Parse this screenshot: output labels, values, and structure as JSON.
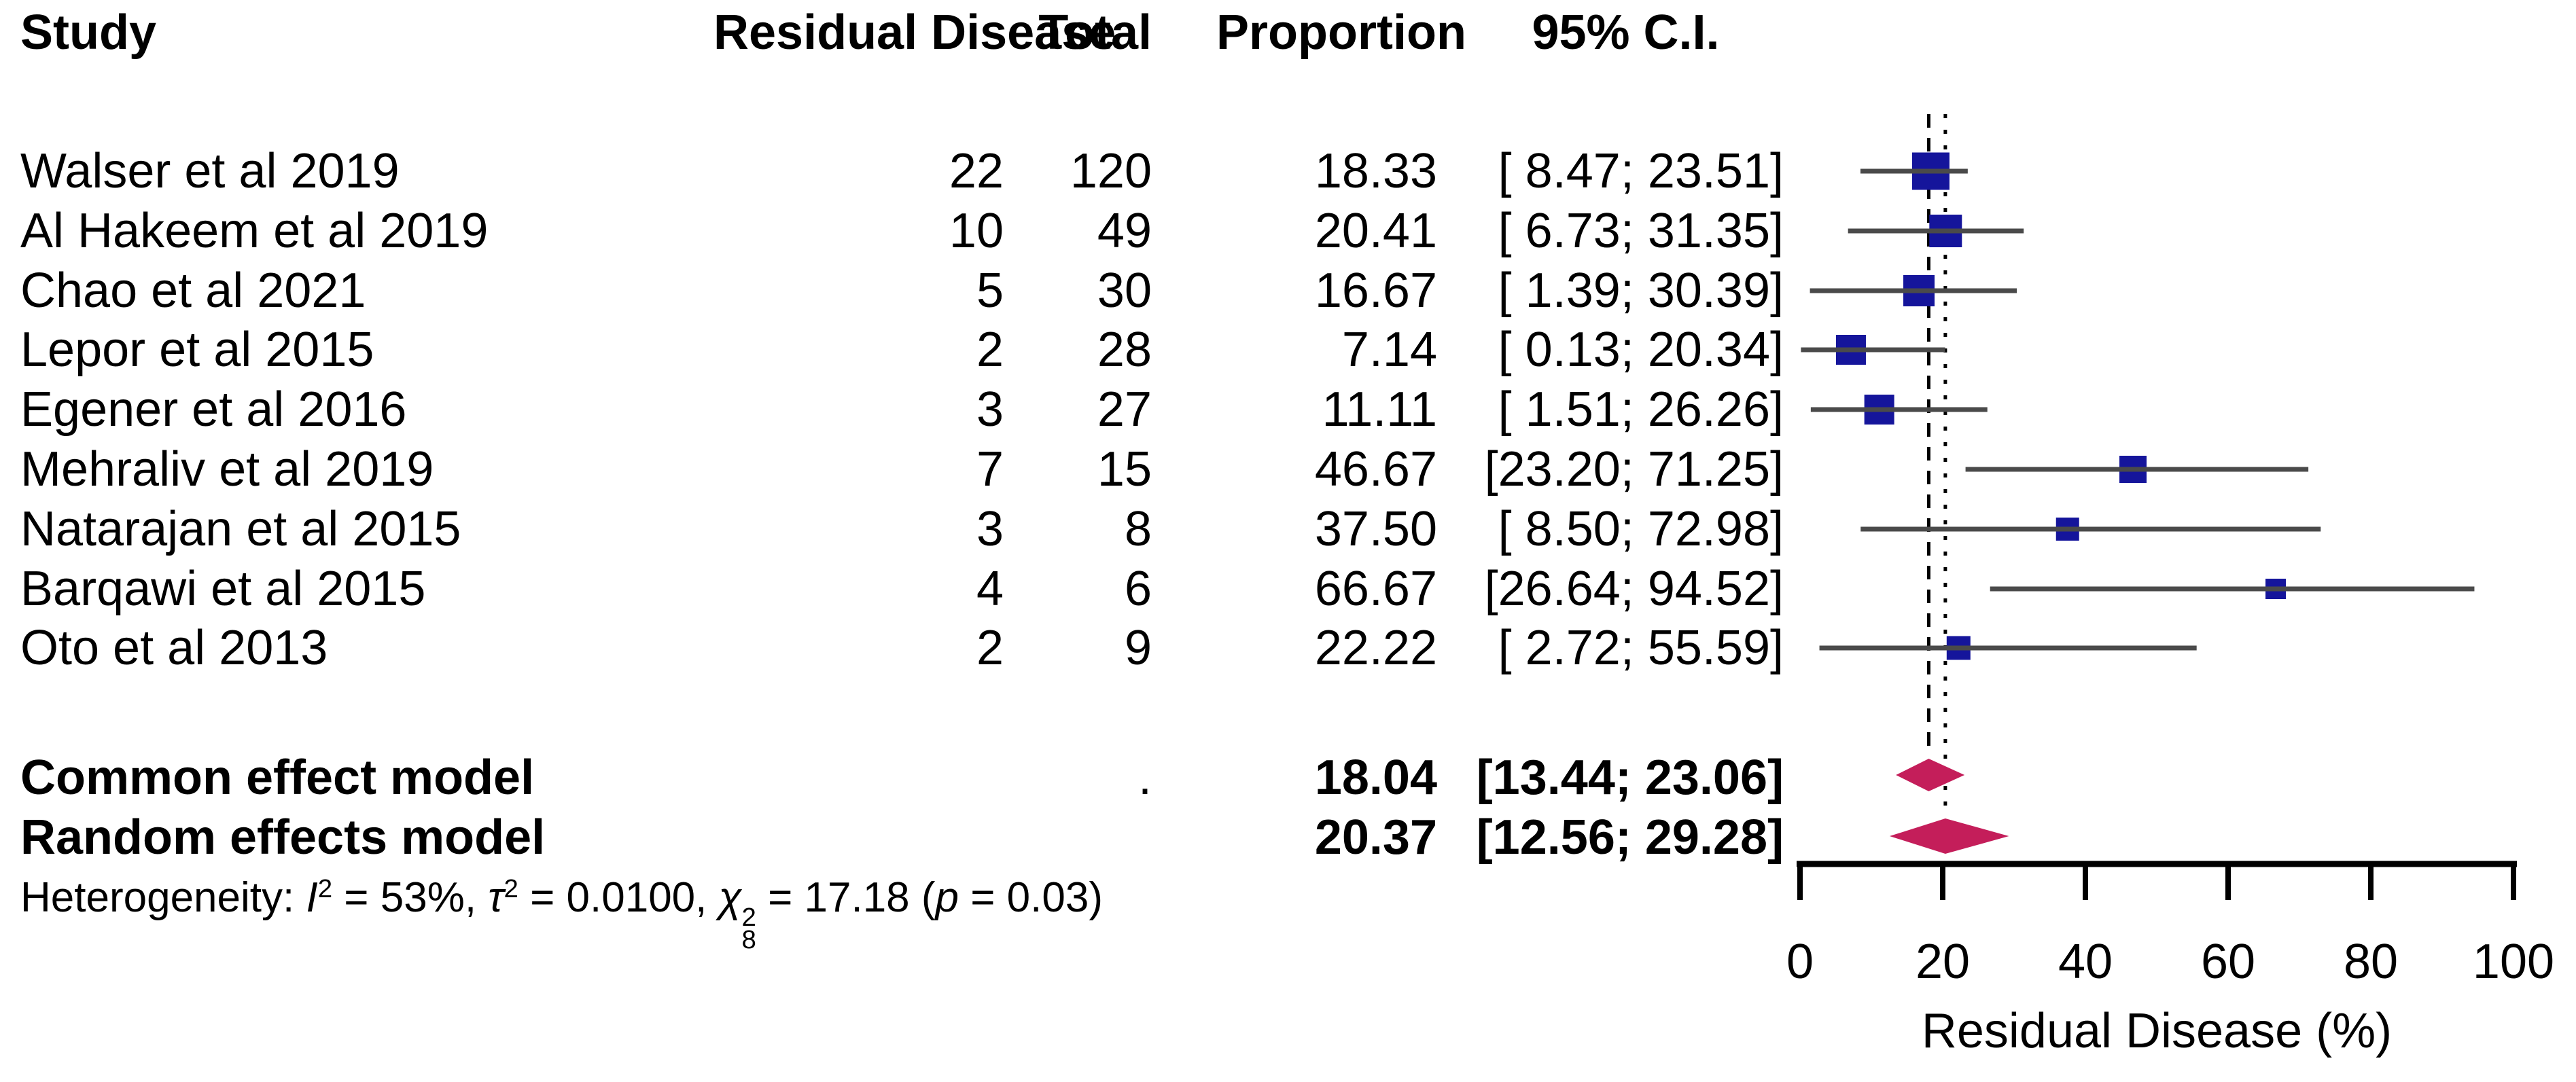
{
  "table": {
    "headers": {
      "study": "Study",
      "events": "Residual Disease",
      "total": "Total",
      "proportion": "Proportion",
      "ci": "95% C.I."
    },
    "rows": [
      {
        "study": "Walser et al 2019",
        "events": "22",
        "total": "120",
        "proportion": "18.33",
        "ci": "[ 8.47; 23.51]"
      },
      {
        "study": "Al Hakeem et al 2019",
        "events": "10",
        "total": "49",
        "proportion": "20.41",
        "ci": "[ 6.73; 31.35]"
      },
      {
        "study": "Chao et al 2021",
        "events": "5",
        "total": "30",
        "proportion": "16.67",
        "ci": "[ 1.39; 30.39]"
      },
      {
        "study": "Lepor et al 2015",
        "events": "2",
        "total": "28",
        "proportion": "7.14",
        "ci": "[ 0.13; 20.34]"
      },
      {
        "study": "Egener et al 2016",
        "events": "3",
        "total": "27",
        "proportion": "11.11",
        "ci": "[ 1.51; 26.26]"
      },
      {
        "study": "Mehraliv et al 2019",
        "events": "7",
        "total": "15",
        "proportion": "46.67",
        "ci": "[23.20; 71.25]"
      },
      {
        "study": "Natarajan et al 2015",
        "events": "3",
        "total": "8",
        "proportion": "37.50",
        "ci": "[ 8.50; 72.98]"
      },
      {
        "study": "Barqawi et al 2015",
        "events": "4",
        "total": "6",
        "proportion": "66.67",
        "ci": "[26.64; 94.52]"
      },
      {
        "study": "Oto et al 2013",
        "events": "2",
        "total": "9",
        "proportion": "22.22",
        "ci": "[ 2.72; 55.59]"
      }
    ],
    "summary_rows": [
      {
        "label": "Common effect model",
        "total": ".",
        "proportion": "18.04",
        "ci": "[13.44; 23.06]"
      },
      {
        "label": "Random effects model",
        "total": "",
        "proportion": "20.37",
        "ci": "[12.56; 29.28]"
      }
    ],
    "heterogeneity": {
      "label": "Heterogeneity: ",
      "i": "I",
      "i_exp": "2",
      "i_rest": " = 53%, ",
      "tau": "τ",
      "tau_exp": "2",
      "tau_rest": " = 0.0100, ",
      "chi": "χ",
      "chi_exp": "2",
      "chi_sub": "8",
      "chi_rest": " = 17.18 (",
      "p": "p",
      "p_rest": " = 0.03)"
    }
  },
  "chart_data": {
    "type": "forest",
    "title": "",
    "xlabel": "Residual Disease (%)",
    "xlim": [
      0,
      100
    ],
    "x_ticks": [
      0,
      20,
      40,
      60,
      80,
      100
    ],
    "grid": false,
    "studies": [
      {
        "name": "Walser et al 2019",
        "events": 22,
        "total": 120,
        "proportion": 18.33,
        "ci_low": 8.47,
        "ci_high": 23.51
      },
      {
        "name": "Al Hakeem et al 2019",
        "events": 10,
        "total": 49,
        "proportion": 20.41,
        "ci_low": 6.73,
        "ci_high": 31.35
      },
      {
        "name": "Chao et al 2021",
        "events": 5,
        "total": 30,
        "proportion": 16.67,
        "ci_low": 1.39,
        "ci_high": 30.39
      },
      {
        "name": "Lepor et al 2015",
        "events": 2,
        "total": 28,
        "proportion": 7.14,
        "ci_low": 0.13,
        "ci_high": 20.34
      },
      {
        "name": "Egener et al 2016",
        "events": 3,
        "total": 27,
        "proportion": 11.11,
        "ci_low": 1.51,
        "ci_high": 26.26
      },
      {
        "name": "Mehraliv et al 2019",
        "events": 7,
        "total": 15,
        "proportion": 46.67,
        "ci_low": 23.2,
        "ci_high": 71.25
      },
      {
        "name": "Natarajan et al 2015",
        "events": 3,
        "total": 8,
        "proportion": 37.5,
        "ci_low": 8.5,
        "ci_high": 72.98
      },
      {
        "name": "Barqawi et al 2015",
        "events": 4,
        "total": 6,
        "proportion": 66.67,
        "ci_low": 26.64,
        "ci_high": 94.52
      },
      {
        "name": "Oto et al 2013",
        "events": 2,
        "total": 9,
        "proportion": 22.22,
        "ci_low": 2.72,
        "ci_high": 55.59
      }
    ],
    "summaries": [
      {
        "name": "Common effect model",
        "proportion": 18.04,
        "ci_low": 13.44,
        "ci_high": 23.06,
        "line_style": "dashed"
      },
      {
        "name": "Random effects model",
        "proportion": 20.37,
        "ci_low": 12.56,
        "ci_high": 29.28,
        "line_style": "dotted"
      }
    ],
    "colors": {
      "square": "#15159B",
      "whisker": "#4a4a4a",
      "diamond": "#C41E5A",
      "axis": "#000000",
      "ref_line": "#000000"
    }
  }
}
